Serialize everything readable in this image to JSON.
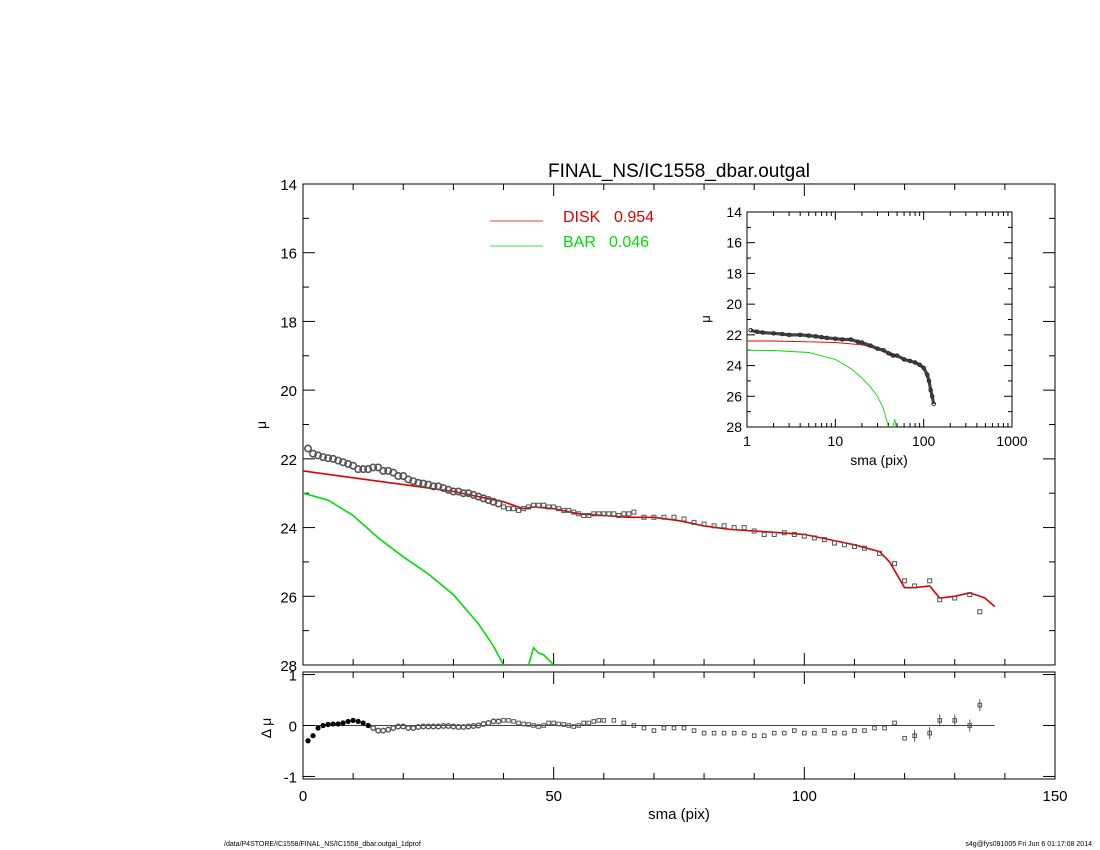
{
  "footer": {
    "left": "/data/P4STORE/IC1558/FINAL_NS/IC1558_dbar.outgal_1dprof",
    "right": "s4g@fys091005  Fri Jun  6 01:17:08 2014"
  },
  "colors": {
    "disk": "#e00000",
    "bar": "#00dd00",
    "data": "#555555",
    "axis": "#000000"
  },
  "chart_data": [
    {
      "id": "main",
      "type": "line",
      "title": "FINAL_NS/IC1558_dbar.outgal",
      "xlabel": "",
      "ylabel": "μ",
      "xlim": [
        0,
        150
      ],
      "ylim": [
        28,
        14
      ],
      "yticks": [
        14,
        16,
        18,
        20,
        22,
        24,
        26,
        28
      ],
      "xticks": [
        0,
        50,
        100,
        150
      ],
      "legend_position": "top-center",
      "series": [
        {
          "name": "DISK",
          "fraction": "0.954",
          "color": "#e00000",
          "x": [
            0,
            10,
            20,
            30,
            35,
            40,
            44,
            46,
            50,
            55,
            60,
            65,
            70,
            75,
            80,
            85,
            90,
            95,
            100,
            105,
            110,
            115,
            117,
            120,
            122,
            125,
            127,
            130,
            133,
            136,
            138
          ],
          "y": [
            22.35,
            22.55,
            22.75,
            22.95,
            23.1,
            23.25,
            23.45,
            23.4,
            23.45,
            23.6,
            23.65,
            23.7,
            23.7,
            23.8,
            23.95,
            24.05,
            24.1,
            24.15,
            24.2,
            24.35,
            24.5,
            24.7,
            25.0,
            25.75,
            25.75,
            25.7,
            26.05,
            26.0,
            25.9,
            26.05,
            26.3
          ]
        },
        {
          "name": "BAR",
          "fraction": "0.046",
          "color": "#00dd00",
          "x": [
            0,
            5,
            10,
            15,
            20,
            25,
            30,
            35,
            38,
            40
          ],
          "y": [
            23.0,
            23.2,
            23.65,
            24.3,
            24.85,
            25.35,
            25.95,
            26.8,
            27.45,
            28.0
          ],
          "x2": [
            45,
            46,
            47,
            48,
            49,
            50
          ],
          "y2": [
            28.0,
            27.5,
            27.65,
            27.7,
            27.85,
            28.0
          ]
        },
        {
          "name": "data",
          "x": [
            1,
            2,
            3,
            4,
            5,
            6,
            7,
            8,
            9,
            10,
            11,
            12,
            13,
            14,
            15,
            16,
            17,
            18,
            19,
            20,
            21,
            22,
            23,
            24,
            25,
            26,
            27,
            28,
            29,
            30,
            31,
            32,
            33,
            34,
            35,
            36,
            37,
            38,
            39,
            40,
            41,
            42,
            43,
            44,
            45,
            46,
            47,
            48,
            49,
            50,
            51,
            52,
            53,
            54,
            55,
            56,
            57,
            58,
            59,
            60,
            61,
            62,
            63,
            64,
            65,
            66,
            68,
            70,
            72,
            74,
            76,
            78,
            80,
            82,
            84,
            86,
            88,
            90,
            92,
            94,
            96,
            98,
            100,
            102,
            104,
            106,
            108,
            110,
            112,
            115,
            118,
            120,
            122,
            125,
            127,
            130,
            133,
            135
          ],
          "y": [
            21.7,
            21.85,
            21.9,
            21.95,
            21.98,
            22.0,
            22.05,
            22.1,
            22.15,
            22.2,
            22.3,
            22.3,
            22.3,
            22.25,
            22.25,
            22.35,
            22.35,
            22.4,
            22.5,
            22.5,
            22.6,
            22.65,
            22.7,
            22.72,
            22.75,
            22.8,
            22.8,
            22.85,
            22.9,
            22.95,
            22.95,
            23.0,
            23.0,
            23.05,
            23.1,
            23.15,
            23.2,
            23.25,
            23.3,
            23.4,
            23.45,
            23.45,
            23.5,
            23.45,
            23.4,
            23.35,
            23.35,
            23.35,
            23.4,
            23.4,
            23.45,
            23.5,
            23.5,
            23.55,
            23.6,
            23.65,
            23.65,
            23.6,
            23.6,
            23.6,
            23.6,
            23.6,
            23.65,
            23.6,
            23.6,
            23.55,
            23.7,
            23.7,
            23.7,
            23.7,
            23.75,
            23.85,
            23.9,
            23.95,
            23.95,
            24.0,
            24.0,
            24.1,
            24.2,
            24.2,
            24.15,
            24.2,
            24.25,
            24.3,
            24.35,
            24.45,
            24.5,
            24.55,
            24.6,
            24.75,
            25.05,
            25.55,
            25.7,
            25.55,
            26.1,
            26.05,
            25.95,
            26.45
          ]
        }
      ]
    },
    {
      "id": "residual",
      "type": "scatter",
      "xlabel": "sma (pix)",
      "ylabel": "Δ μ",
      "xlim": [
        0,
        150
      ],
      "ylim": [
        -1.05,
        1.05
      ],
      "yticks": [
        -1,
        0,
        1
      ],
      "xticks": [
        0,
        50,
        100,
        150
      ],
      "series": [
        {
          "name": "residual",
          "x": [
            1,
            2,
            3,
            4,
            5,
            6,
            7,
            8,
            9,
            10,
            11,
            12,
            13,
            14,
            15,
            16,
            17,
            18,
            19,
            20,
            21,
            22,
            23,
            24,
            25,
            26,
            27,
            28,
            29,
            30,
            31,
            32,
            33,
            34,
            35,
            36,
            37,
            38,
            39,
            40,
            41,
            42,
            43,
            44,
            45,
            46,
            47,
            48,
            49,
            50,
            51,
            52,
            53,
            54,
            55,
            56,
            57,
            58,
            59,
            60,
            62,
            64,
            66,
            68,
            70,
            72,
            74,
            76,
            78,
            80,
            82,
            84,
            86,
            88,
            90,
            92,
            94,
            96,
            98,
            100,
            102,
            104,
            106,
            108,
            110,
            112,
            114,
            116,
            118,
            120,
            122,
            125,
            127,
            130,
            133,
            135
          ],
          "y": [
            -0.3,
            -0.2,
            -0.05,
            0.0,
            0.02,
            0.03,
            0.03,
            0.05,
            0.08,
            0.1,
            0.08,
            0.05,
            0.0,
            -0.05,
            -0.1,
            -0.1,
            -0.08,
            -0.05,
            -0.02,
            -0.02,
            -0.05,
            -0.05,
            -0.03,
            -0.02,
            -0.02,
            -0.02,
            -0.02,
            -0.01,
            -0.01,
            -0.02,
            -0.03,
            -0.03,
            -0.02,
            -0.01,
            0.0,
            0.03,
            0.05,
            0.08,
            0.08,
            0.1,
            0.1,
            0.08,
            0.05,
            0.03,
            0.02,
            0.0,
            -0.02,
            0.0,
            0.05,
            0.05,
            0.03,
            0.02,
            0.0,
            -0.02,
            0.0,
            0.05,
            0.05,
            0.08,
            0.1,
            0.1,
            0.1,
            0.05,
            0.0,
            -0.05,
            -0.1,
            -0.05,
            -0.05,
            -0.05,
            -0.1,
            -0.15,
            -0.15,
            -0.15,
            -0.15,
            -0.15,
            -0.2,
            -0.2,
            -0.15,
            -0.15,
            -0.1,
            -0.15,
            -0.15,
            -0.1,
            -0.15,
            -0.15,
            -0.1,
            -0.1,
            -0.05,
            -0.05,
            0.05,
            -0.25,
            -0.2,
            -0.15,
            0.1,
            0.1,
            0.0,
            0.4
          ]
        }
      ]
    },
    {
      "id": "inset",
      "type": "line",
      "xlabel": "sma (pix)",
      "ylabel": "μ",
      "xscale": "log",
      "xlim": [
        1,
        1000
      ],
      "ylim": [
        28,
        14
      ],
      "yticks": [
        14,
        16,
        18,
        20,
        22,
        24,
        26,
        28
      ],
      "xticks": [
        1,
        10,
        100,
        1000
      ],
      "series": [
        {
          "name": "DISK",
          "x": [
            1,
            2,
            5,
            10,
            20,
            40,
            60,
            80,
            100,
            120,
            130
          ],
          "y": [
            22.4,
            22.4,
            22.45,
            22.5,
            22.65,
            23.1,
            23.5,
            23.8,
            24.2,
            25.5,
            26.3
          ]
        },
        {
          "name": "BAR",
          "x": [
            1,
            2,
            5,
            10,
            15,
            20,
            25,
            30,
            35,
            40
          ],
          "y": [
            23.0,
            23.02,
            23.15,
            23.6,
            24.2,
            24.8,
            25.4,
            26.0,
            26.8,
            28.0
          ],
          "x2": [
            45,
            47,
            49
          ],
          "y2": [
            28.0,
            27.5,
            28.0
          ]
        },
        {
          "name": "data",
          "x": [
            1.1,
            1.3,
            1.5,
            2,
            2.5,
            3,
            4,
            5,
            6,
            7,
            8,
            10,
            12,
            15,
            18,
            20,
            25,
            30,
            35,
            40,
            45,
            50,
            60,
            70,
            80,
            90,
            100,
            110,
            115,
            120,
            125,
            130
          ],
          "y": [
            21.7,
            21.8,
            21.85,
            21.9,
            21.95,
            22.0,
            22.0,
            22.05,
            22.1,
            22.15,
            22.2,
            22.25,
            22.3,
            22.3,
            22.45,
            22.5,
            22.7,
            22.9,
            23.0,
            23.2,
            23.35,
            23.35,
            23.6,
            23.7,
            23.8,
            23.95,
            24.15,
            24.6,
            25.0,
            25.6,
            26.0,
            26.5
          ]
        }
      ]
    }
  ]
}
